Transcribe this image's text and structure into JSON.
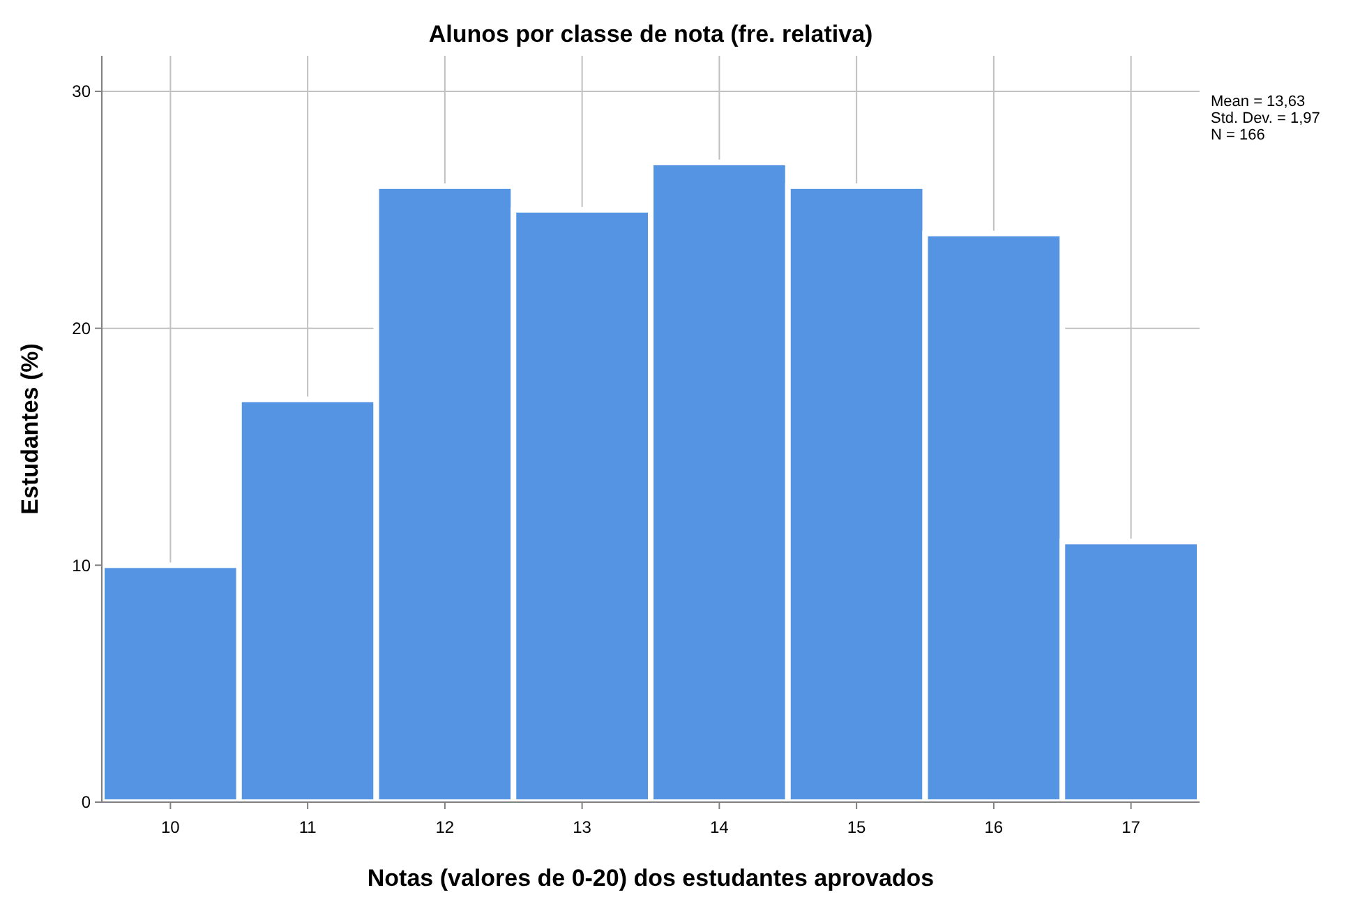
{
  "chart_data": {
    "type": "histogram",
    "title": "Alunos por classe de nota (fre. relativa)",
    "xlabel": "Notas (valores de 0-20) dos estudantes aprovados",
    "ylabel": "Estudantes (%)",
    "bins": [
      9.5,
      10.5,
      11.5,
      12.5,
      13.5,
      14.5,
      15.5,
      16.5,
      17.5
    ],
    "values": [
      10,
      17,
      26,
      25,
      27,
      26,
      24,
      11
    ],
    "color": "#5594e2",
    "xlim": [
      9.5,
      17.5
    ],
    "xticks": [
      10,
      11,
      12,
      13,
      14,
      15,
      16,
      17
    ],
    "ylim": [
      0,
      31.5
    ],
    "yticks": [
      0,
      10,
      20,
      30
    ],
    "grid": true,
    "annotations": [
      "Mean = 13,63",
      "Std. Dev. = 1,97",
      "N = 166"
    ]
  }
}
